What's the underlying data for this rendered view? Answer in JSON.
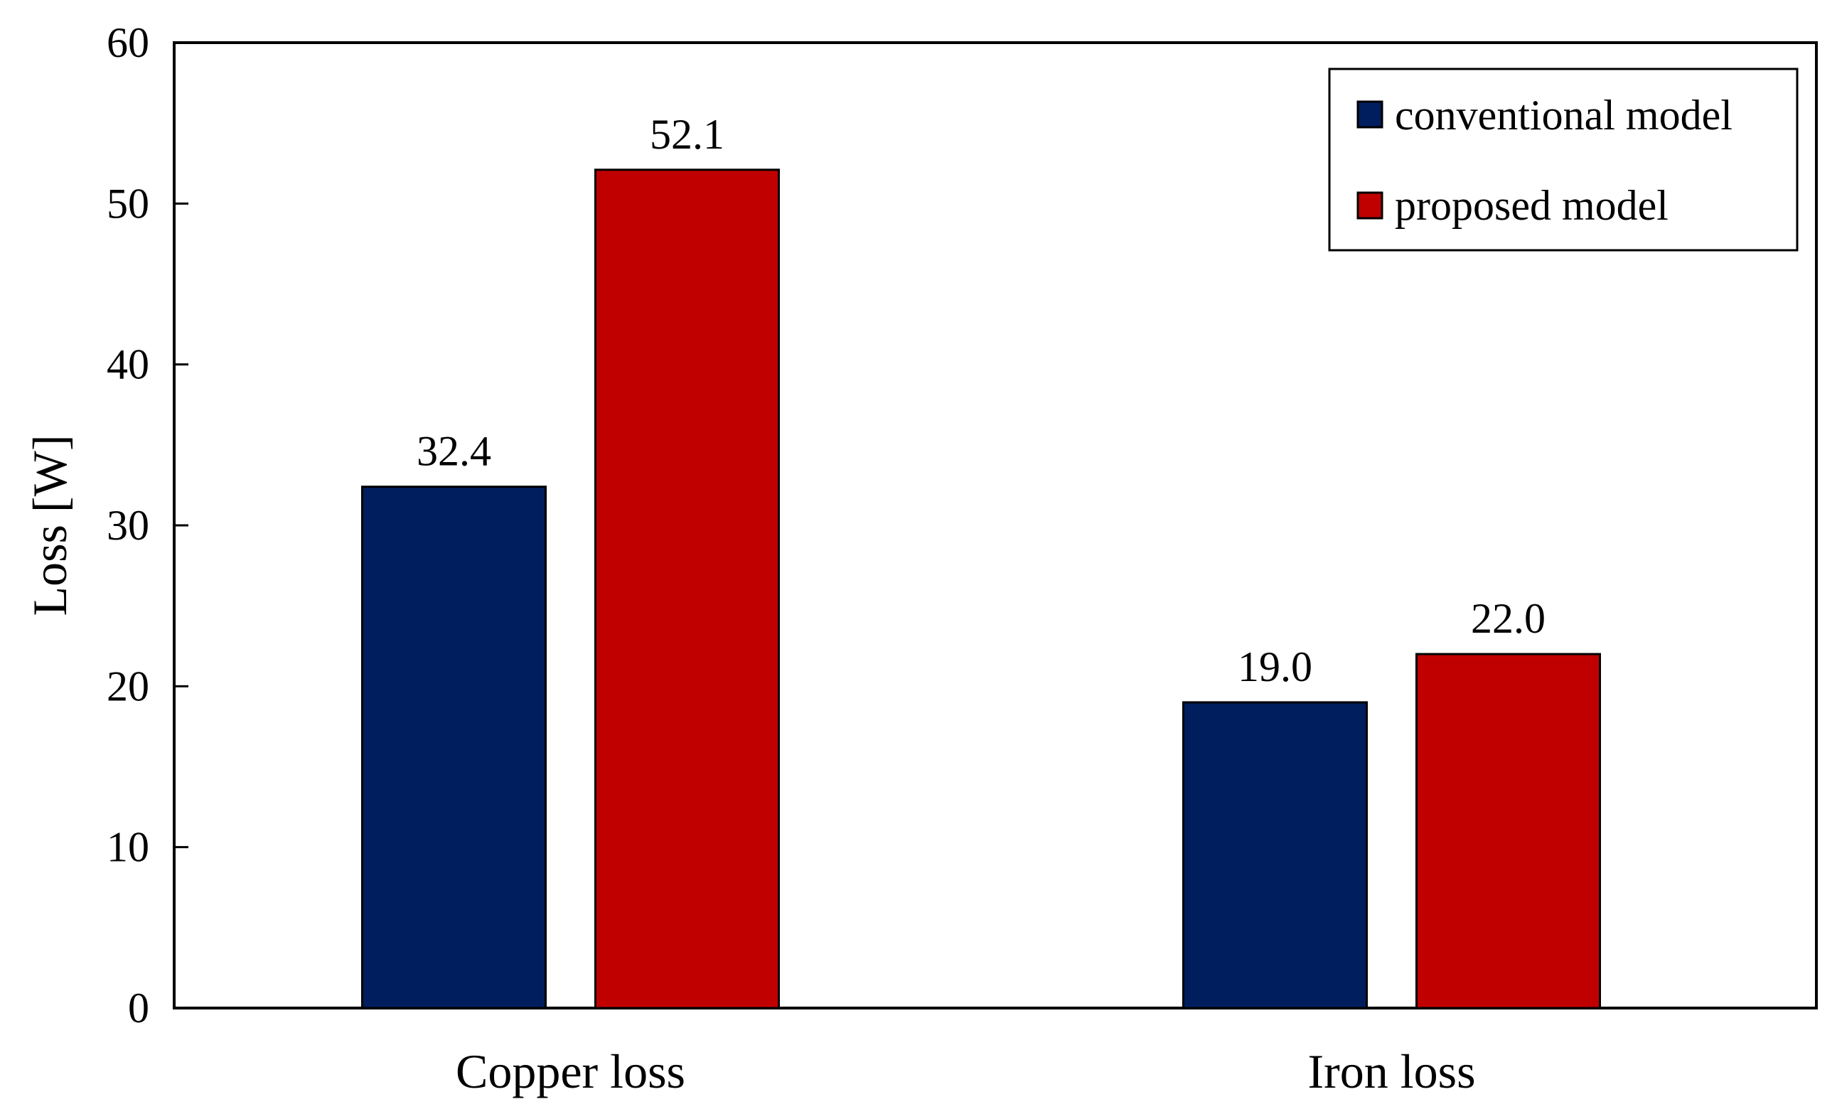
{
  "chart_data": {
    "type": "bar",
    "title": "",
    "xlabel": "",
    "ylabel": "Loss [W]",
    "ylim": [
      0,
      60
    ],
    "yticks": [
      0,
      10,
      20,
      30,
      40,
      50,
      60
    ],
    "categories": [
      "Copper loss",
      "Iron loss"
    ],
    "series": [
      {
        "name": "conventional model",
        "color": "#001E5E",
        "values": [
          32.4,
          19.0
        ],
        "labels": [
          "32.4",
          "19.0"
        ]
      },
      {
        "name": "proposed model",
        "color": "#C00000",
        "values": [
          52.1,
          22.0
        ],
        "labels": [
          "52.1",
          "22.0"
        ]
      }
    ],
    "grid": false,
    "legend_position": "top-right"
  }
}
